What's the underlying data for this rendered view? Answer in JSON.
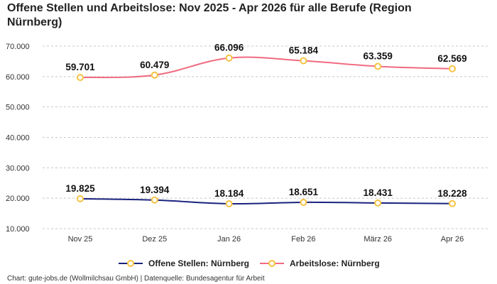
{
  "chart_data": {
    "type": "line",
    "title": "Offene Stellen und Arbeitslose: Nov 2025 - Apr 2026 für alle Berufe (Region Nürnberg)",
    "categories": [
      "Nov 25",
      "Dez 25",
      "Jan 26",
      "Feb 26",
      "März 26",
      "Apr 26"
    ],
    "series": [
      {
        "name": "Offene Stellen: Nürnberg",
        "color": "#1a237e",
        "values": [
          19825,
          19394,
          18184,
          18651,
          18431,
          18228
        ],
        "labels": [
          "19.825",
          "19.394",
          "18.184",
          "18.651",
          "18.431",
          "18.228"
        ]
      },
      {
        "name": "Arbeitslose: Nürnberg",
        "color": "#f06b80",
        "values": [
          59701,
          60479,
          66096,
          65184,
          63359,
          62569
        ],
        "labels": [
          "59.701",
          "60.479",
          "66.096",
          "65.184",
          "63.359",
          "62.569"
        ]
      }
    ],
    "yticks": [
      10000,
      20000,
      30000,
      40000,
      50000,
      60000,
      70000
    ],
    "ytick_labels": [
      "10.000",
      "20.000",
      "30.000",
      "40.000",
      "50.000",
      "60.000",
      "70.000"
    ],
    "ylim": [
      10000,
      70000
    ],
    "grid": true,
    "legend_position": "bottom",
    "marker_color": "#f5c342"
  },
  "source": "Chart: gute-jobs.de (Wollmilchsau GmbH) | Datenquelle: Bundesagentur für Arbeit"
}
